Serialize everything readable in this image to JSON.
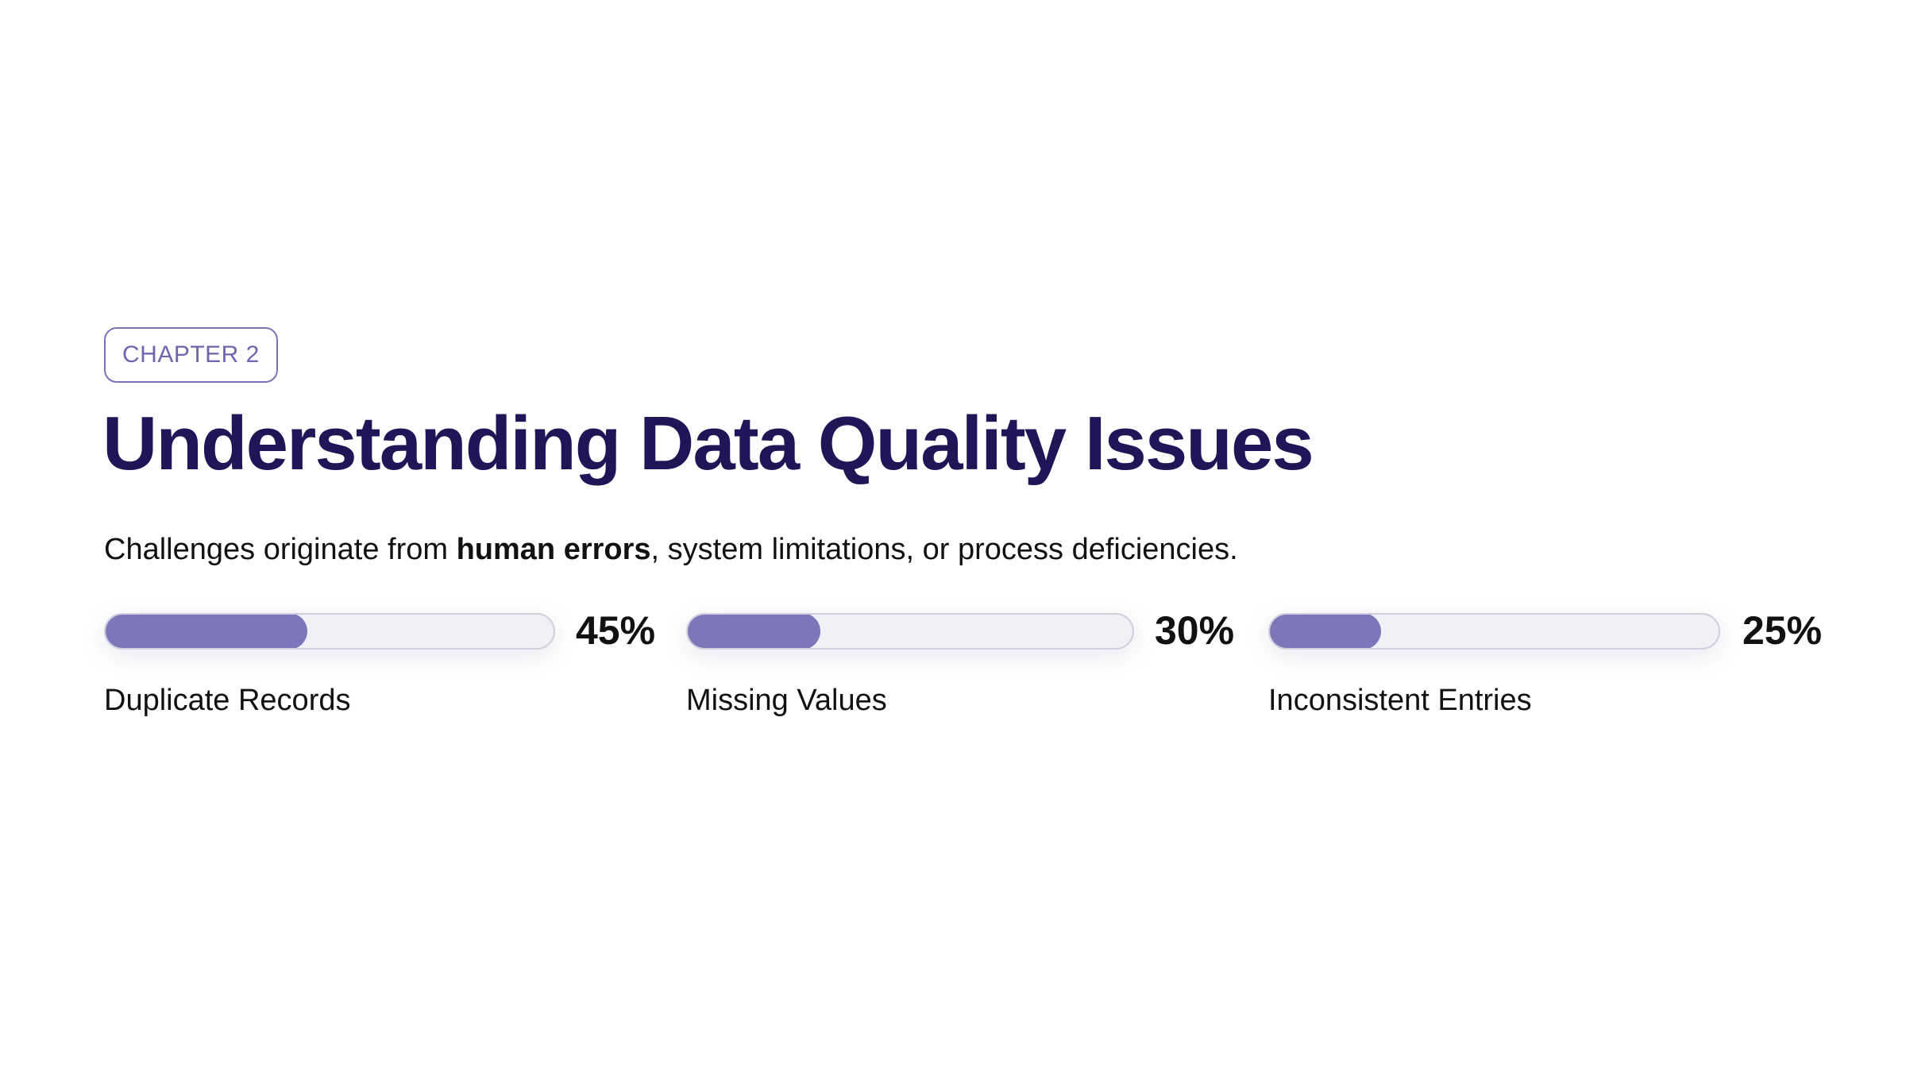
{
  "chapter": {
    "label": "CHAPTER 2"
  },
  "title": "Understanding Data Quality Issues",
  "subtitle": {
    "prefix": "Challenges originate from ",
    "emphasis": "human errors",
    "suffix": ", system limitations, or process deficiencies."
  },
  "metrics": [
    {
      "name": "Duplicate Records",
      "percent_label": "45%",
      "value": 45
    },
    {
      "name": "Missing Values",
      "percent_label": "30%",
      "value": 30
    },
    {
      "name": "Inconsistent Entries",
      "percent_label": "25%",
      "value": 25
    }
  ],
  "colors": {
    "title": "#1e1656",
    "accent": "#7b77b8",
    "track": "#f0f0f6",
    "text": "#111111"
  }
}
